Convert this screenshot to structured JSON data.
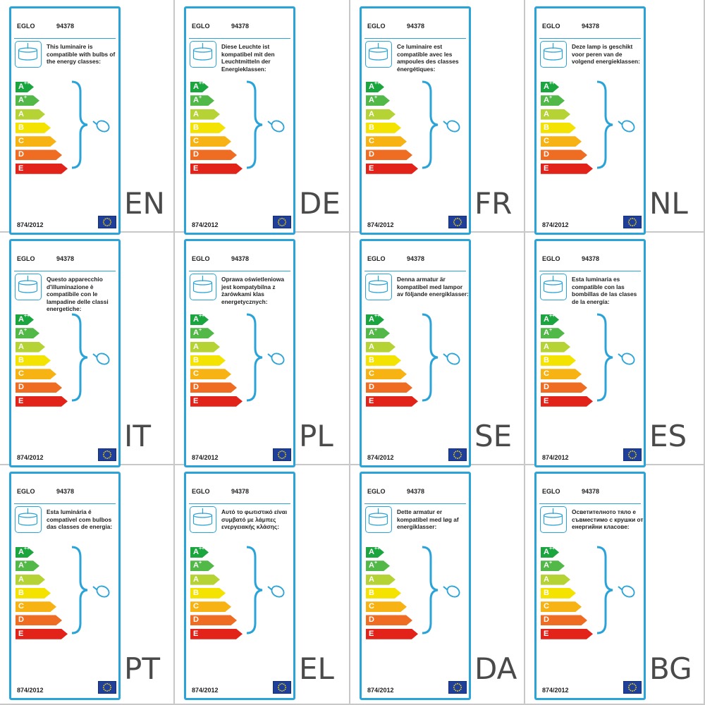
{
  "labels": [
    {
      "lang": "EN",
      "brand": "EGLO",
      "model": "94378",
      "text": "This luminaire is compatible with bulbs of the energy classes:",
      "regulation": "874/2012"
    },
    {
      "lang": "DE",
      "brand": "EGLO",
      "model": "94378",
      "text": "Diese Leuchte ist kompatibel mit den Leuchtmitteln der Energieklassen:",
      "regulation": "874/2012"
    },
    {
      "lang": "FR",
      "brand": "EGLO",
      "model": "94378",
      "text": "Ce luminaire est compatible avec les ampoules des classes énergétiques:",
      "regulation": "874/2012"
    },
    {
      "lang": "NL",
      "brand": "EGLO",
      "model": "94378",
      "text": "Deze lamp is geschikt voor peren van de volgend energieklassen:",
      "regulation": "874/2012"
    },
    {
      "lang": "IT",
      "brand": "EGLO",
      "model": "94378",
      "text": "Questo apparecchio d'illuminazione è compatibile con le lampadine delle classi energetiche:",
      "regulation": "874/2012"
    },
    {
      "lang": "PL",
      "brand": "EGLO",
      "model": "94378",
      "text": "Oprawa oświetleniowa jest kompatybilna z żarówkami klas energetycznych:",
      "regulation": "874/2012"
    },
    {
      "lang": "SE",
      "brand": "EGLO",
      "model": "94378",
      "text": "Denna armatur är kompatibel med lampor av följande energiklasser:",
      "regulation": "874/2012"
    },
    {
      "lang": "ES",
      "brand": "EGLO",
      "model": "94378",
      "text": "Esta luminaria es compatible con las bombillas de las clases de la energía:",
      "regulation": "874/2012"
    },
    {
      "lang": "PT",
      "brand": "EGLO",
      "model": "94378",
      "text": "Esta luminária é compativel com bulbos das classes de energia:",
      "regulation": "874/2012"
    },
    {
      "lang": "EL",
      "brand": "EGLO",
      "model": "94378",
      "text": "Αυτό το φωτιστικό είναι συμβατό με λάμπες ενεργειακής κλάσης:",
      "regulation": "874/2012"
    },
    {
      "lang": "DA",
      "brand": "EGLO",
      "model": "94378",
      "text": "Dette armatur er kompatibel med løg af energiklasser:",
      "regulation": "874/2012"
    },
    {
      "lang": "BG",
      "brand": "EGLO",
      "model": "94378",
      "text": "Осветителното тяло е съвместимо с крушки от енергийни класове:",
      "regulation": "874/2012"
    }
  ],
  "energy_classes": [
    {
      "base": "A",
      "sup": "++",
      "color": "#1ba53e"
    },
    {
      "base": "A",
      "sup": "+",
      "color": "#52b848"
    },
    {
      "base": "A",
      "sup": "",
      "color": "#b5d334"
    },
    {
      "base": "B",
      "sup": "",
      "color": "#f4e300"
    },
    {
      "base": "C",
      "sup": "",
      "color": "#f7b213"
    },
    {
      "base": "D",
      "sup": "",
      "color": "#ee6d23"
    },
    {
      "base": "E",
      "sup": "",
      "color": "#e2231a"
    }
  ],
  "icons": {
    "lamp": "pendant-lamp-icon",
    "bulb": "light-bulb-icon",
    "bracket": "curly-bracket-icon",
    "flag": "eu-flag-icon"
  },
  "colors": {
    "frame": "#2aa3d8",
    "eu_blue": "#1f3f9a",
    "eu_star": "#ffdd00"
  }
}
